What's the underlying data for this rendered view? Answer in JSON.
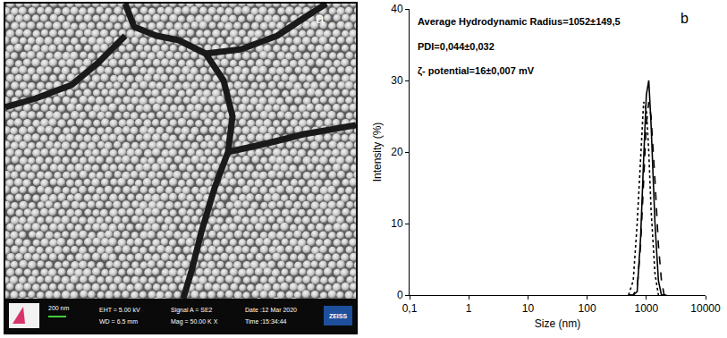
{
  "panel_a": {
    "label": "a",
    "scale_bar": "200 nm",
    "info": [
      [
        "EHT = 5.00 kV",
        "WD = 6.5 mm"
      ],
      [
        "Signal A = SE2",
        "Mag = 50.00 K X"
      ],
      [
        "Date :12 Mar 2020",
        "Time :15:34:44"
      ]
    ],
    "brand": "ZEISS"
  },
  "chart_data": {
    "type": "line",
    "panel_label": "b",
    "annotations": [
      "Average Hydrodynamic Radius=1052±149,5",
      "PDI=0,044±0,032",
      "ζ- potential=16±0,007 mV"
    ],
    "x_label": "Size (nm)",
    "y_label": "Intensity (%)",
    "x": [
      500,
      600,
      700,
      800,
      900,
      1000,
      1100,
      1200,
      1400,
      1600,
      1800,
      2000,
      2200
    ],
    "series": [
      {
        "line_style": "solid",
        "color": "#000000",
        "values": [
          0,
          0,
          0.5,
          8,
          19,
          28,
          30,
          24,
          10,
          2,
          0,
          0,
          0
        ]
      },
      {
        "line_style": "dash",
        "color": "#000000",
        "values": [
          0,
          0,
          1,
          7,
          16,
          24,
          27,
          25,
          16,
          7,
          2,
          0,
          0
        ]
      },
      {
        "line_style": "dot",
        "color": "#000000",
        "values": [
          0,
          2,
          10,
          20,
          27,
          26,
          20,
          12,
          3,
          0,
          0,
          0,
          0
        ]
      }
    ],
    "xlim": [
      0.1,
      10000
    ],
    "xticks": [
      {
        "value": 0.1,
        "label": "0,1"
      },
      1,
      10,
      100,
      1000,
      10000
    ],
    "ylim": [
      0,
      40
    ],
    "yticks": [
      0,
      10,
      20,
      30,
      40
    ],
    "log": "x",
    "grid": false
  }
}
